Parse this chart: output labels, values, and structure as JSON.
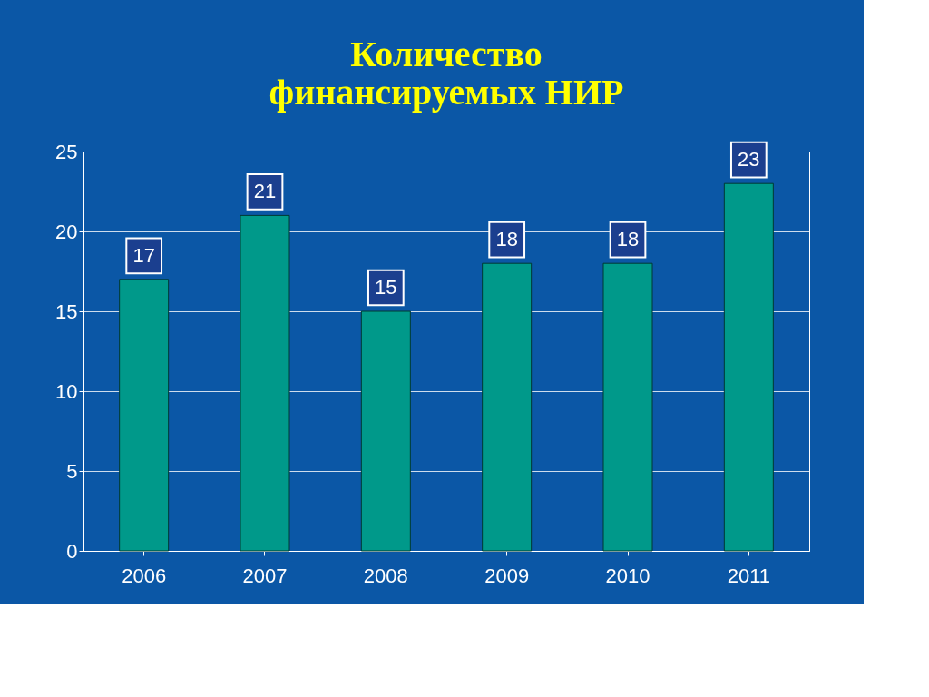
{
  "chart_data": {
    "type": "bar",
    "title": [
      "Количество",
      "финансируемых НИР"
    ],
    "categories": [
      "2006",
      "2007",
      "2008",
      "2009",
      "2010",
      "2011"
    ],
    "values": [
      17,
      21,
      15,
      18,
      18,
      23
    ],
    "color": "#00998a",
    "ylim": [
      0,
      25
    ],
    "yticks": [
      0,
      5,
      10,
      15,
      20,
      25
    ],
    "grid": "y",
    "data_labels": true
  }
}
